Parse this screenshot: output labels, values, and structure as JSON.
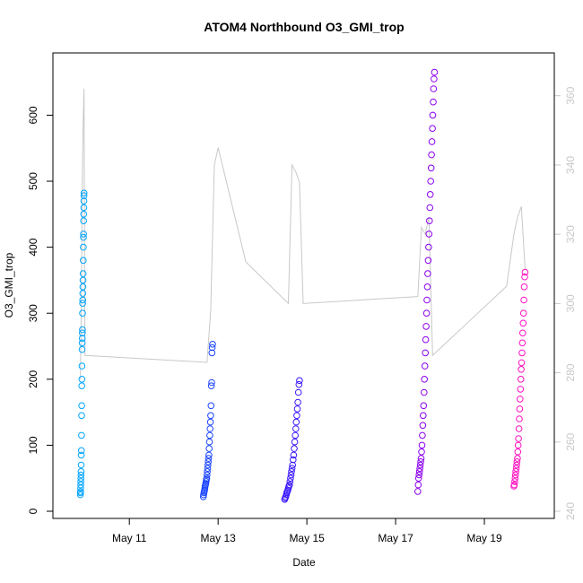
{
  "chart_data": {
    "type": "scatter",
    "title": "ATOM4 Northbound O3_GMI_trop",
    "xlabel": "Date",
    "ylabel": "O3_GMI_trop",
    "x_unit": "days",
    "xlim": [
      "2017-05-09T12:00",
      "2017-05-20T08:00"
    ],
    "ylim": [
      0,
      640
    ],
    "y2lim": [
      240,
      362
    ],
    "x_ticks": [
      {
        "x": "2017-05-11",
        "label": "May 11"
      },
      {
        "x": "2017-05-13",
        "label": "May 13"
      },
      {
        "x": "2017-05-15",
        "label": "May 15"
      },
      {
        "x": "2017-05-17",
        "label": "May 17"
      },
      {
        "x": "2017-05-19",
        "label": "May 19"
      }
    ],
    "y_ticks": [
      0,
      100,
      200,
      300,
      400,
      500,
      600
    ],
    "y2_ticks": [
      240,
      260,
      280,
      300,
      320,
      340,
      360
    ],
    "series": [
      {
        "color": "#00a5ff",
        "flight_window": [
          "2017-05-09T21:30",
          "2017-05-09T23:30"
        ],
        "values": [
          25,
          28,
          30,
          35,
          40,
          45,
          50,
          55,
          60,
          70,
          85,
          92,
          115,
          145,
          160,
          190,
          200,
          220,
          245,
          255,
          262,
          270,
          275,
          300,
          315,
          320,
          330,
          340,
          350,
          360,
          380,
          400,
          415,
          420,
          440,
          450,
          460,
          470,
          478,
          482
        ]
      },
      {
        "color": "#1a44ff",
        "flight_window": [
          "2017-05-12T16:00",
          "2017-05-12T21:00"
        ],
        "values": [
          22,
          25,
          28,
          30,
          32,
          35,
          38,
          40,
          42,
          45,
          48,
          50,
          55,
          60,
          65,
          70,
          75,
          80,
          85,
          95,
          105,
          115,
          125,
          135,
          145,
          160,
          190,
          195,
          240,
          248,
          253
        ]
      },
      {
        "color": "#3a18ff",
        "flight_window": [
          "2017-05-14T12:00",
          "2017-05-14T20:00"
        ],
        "values": [
          18,
          20,
          22,
          25,
          28,
          30,
          32,
          35,
          38,
          40,
          45,
          50,
          55,
          60,
          65,
          70,
          78,
          85,
          95,
          105,
          115,
          125,
          135,
          145,
          155,
          165,
          180,
          192,
          198
        ]
      },
      {
        "color": "#8b00f0",
        "flight_window": [
          "2017-05-17T12:00",
          "2017-05-17T21:00"
        ],
        "values": [
          30,
          40,
          50,
          55,
          60,
          65,
          70,
          75,
          80,
          90,
          100,
          115,
          130,
          145,
          160,
          180,
          200,
          220,
          240,
          260,
          280,
          300,
          320,
          340,
          360,
          380,
          400,
          420,
          440,
          460,
          480,
          500,
          520,
          540,
          560,
          580,
          600,
          620,
          640,
          655,
          665
        ]
      },
      {
        "color": "#ff10c0",
        "flight_window": [
          "2017-05-19T16:00",
          "2017-05-19T22:00"
        ],
        "values": [
          38,
          40,
          45,
          50,
          55,
          60,
          65,
          70,
          75,
          80,
          90,
          100,
          110,
          125,
          140,
          155,
          170,
          185,
          200,
          215,
          225,
          240,
          255,
          270,
          285,
          300,
          320,
          340,
          355,
          362
        ]
      }
    ],
    "line_series": [
      {
        "axis": "right",
        "color": "#c8c8c8",
        "x": [
          "2017-05-09T21:30",
          "2017-05-09T22:00",
          "2017-05-09T22:30",
          "2017-05-09T23:00",
          "2017-05-09T23:30",
          "2017-05-10T00:00",
          "2017-05-12T18:00",
          "2017-05-12T20:00",
          "2017-05-12T22:00",
          "2017-05-13T00:00",
          "2017-05-13T15:00",
          "2017-05-14T14:00",
          "2017-05-14T16:00",
          "2017-05-14T18:00",
          "2017-05-14T20:00",
          "2017-05-14T22:00",
          "2017-05-17T12:00",
          "2017-05-17T14:00",
          "2017-05-17T16:00",
          "2017-05-17T18:00",
          "2017-05-17T20:00",
          "2017-05-19T12:00",
          "2017-05-19T16:00",
          "2017-05-19T18:00",
          "2017-05-19T20:00",
          "2017-05-19T22:00"
        ],
        "values": [
          278,
          298,
          332,
          352,
          362,
          285,
          283,
          298,
          340,
          345,
          312,
          300,
          340,
          338,
          335,
          300,
          302,
          322,
          320,
          325,
          285,
          305,
          320,
          325,
          328,
          310
        ]
      }
    ],
    "grid": false,
    "legend": "none",
    "marker": "open-circle",
    "secondary_axis": "right"
  }
}
